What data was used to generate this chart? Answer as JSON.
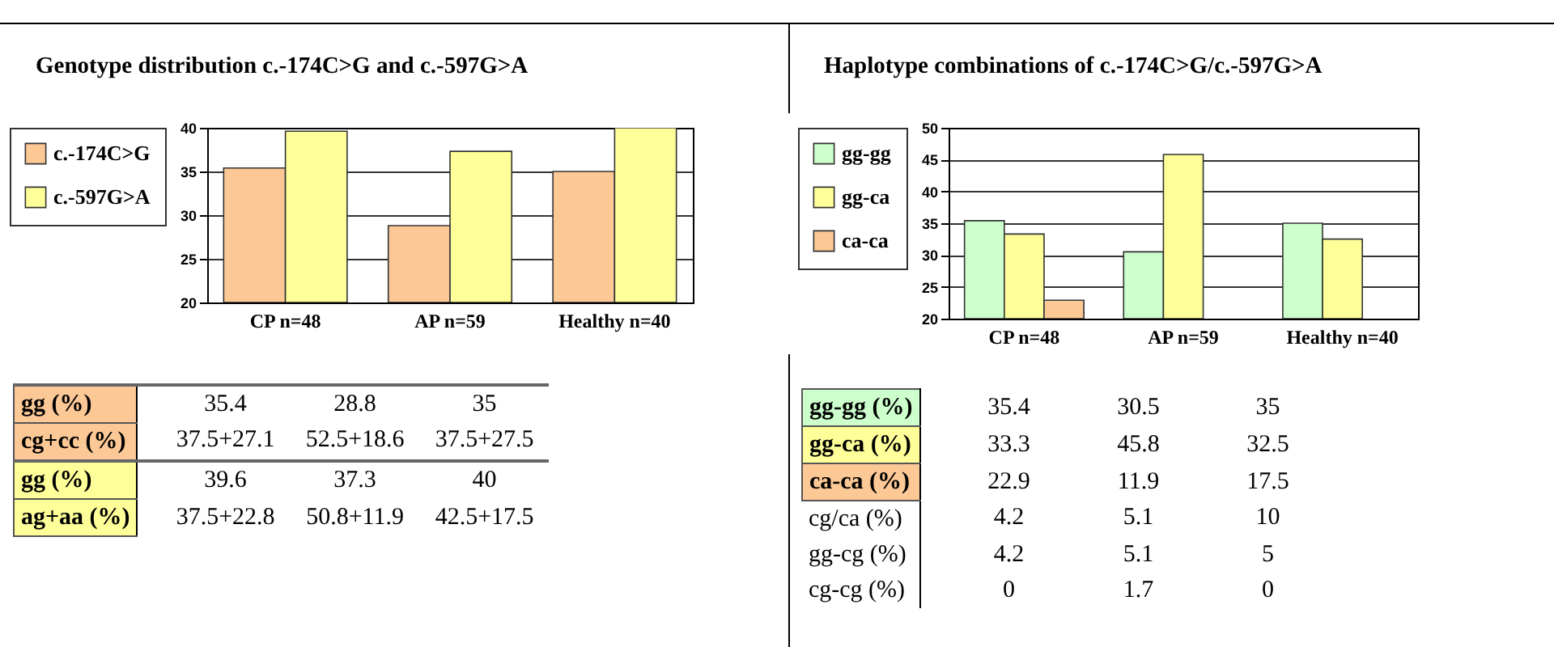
{
  "chart_data": [
    {
      "type": "bar",
      "title": "Genotype distribution c.-174C>G and c.-597G>A",
      "categories": [
        "CP n=48",
        "AP n=59",
        "Healthy n=40"
      ],
      "series": [
        {
          "name": "c.-174C>G",
          "color": "#fcc896",
          "values": [
            35.4,
            28.8,
            35
          ]
        },
        {
          "name": "c.-597G>A",
          "color": "#ffff99",
          "values": [
            39.6,
            37.3,
            40
          ]
        }
      ],
      "ylim": [
        20,
        40
      ],
      "yticks": [
        20,
        25,
        30,
        35,
        40
      ],
      "grid": "y",
      "legend": "left",
      "annotations": [
        "gg (%)",
        "35.4",
        "28.8",
        "35",
        "cg+cc (%)",
        "37.5+27.1",
        "52.5+18.6",
        "37.5+27.5",
        "gg (%)",
        "39.6",
        "37.3",
        "40",
        "ag+aa (%)",
        "37.5+22.8",
        "50.8+11.9",
        "42.5+17.5"
      ]
    },
    {
      "type": "bar",
      "title": "Haplotype combinations of c.-174C>G/c.-597G>A",
      "categories": [
        "CP n=48",
        "AP n=59",
        "Healthy n=40"
      ],
      "series": [
        {
          "name": "gg-gg",
          "color": "#ccffcc",
          "values": [
            35.4,
            30.5,
            35
          ]
        },
        {
          "name": "gg-ca",
          "color": "#ffff99",
          "values": [
            33.3,
            45.8,
            32.5
          ]
        },
        {
          "name": "ca-ca",
          "color": "#fcc896",
          "values": [
            22.9,
            null,
            null
          ]
        }
      ],
      "ylim": [
        20,
        50
      ],
      "yticks": [
        20,
        25,
        30,
        35,
        40,
        45,
        50
      ],
      "grid": "y",
      "legend": "left",
      "annotations": [
        "gg-gg (%)",
        "35.4",
        "30.5",
        "35",
        "gg-ca (%)",
        "33.3",
        "45.8",
        "32.5",
        "ca-ca  (%)",
        "22.9",
        "11.9",
        "17.5",
        "cg/ca (%)",
        "4.2",
        "5.1",
        "10",
        "gg-cg (%)",
        "4.2",
        "5.1",
        "5",
        "cg-cg (%)",
        "0",
        "1.7",
        "0"
      ]
    }
  ]
}
